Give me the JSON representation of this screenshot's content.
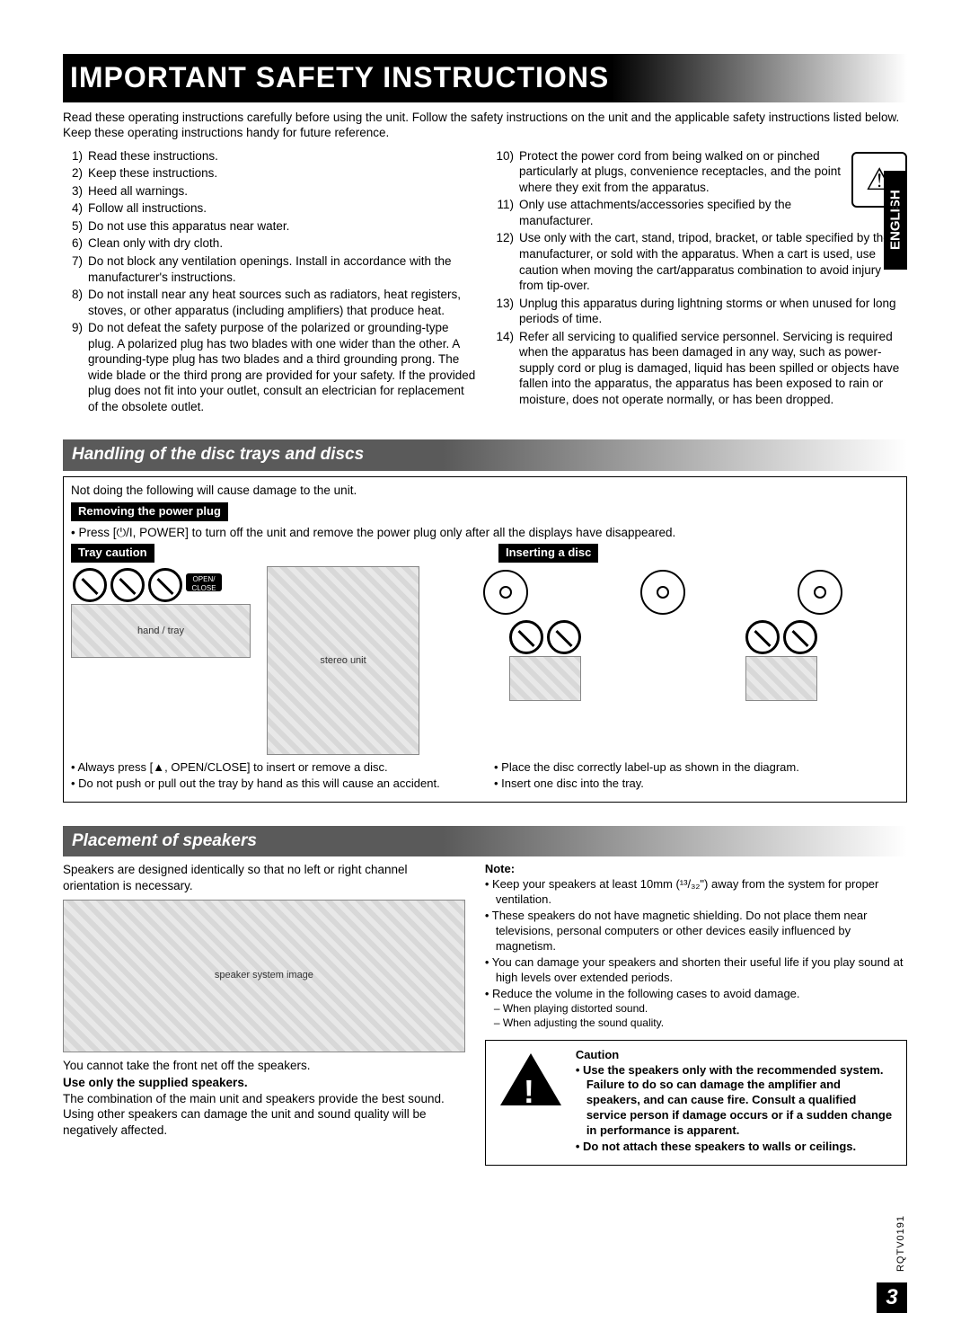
{
  "title": "IMPORTANT SAFETY INSTRUCTIONS",
  "intro": "Read these operating instructions carefully before using the unit. Follow the safety instructions on the unit and the applicable safety instructions listed below. Keep these operating instructions handy for future reference.",
  "left_list": [
    "Read these instructions.",
    "Keep these instructions.",
    "Heed all warnings.",
    "Follow all instructions.",
    "Do not use this apparatus near water.",
    "Clean only with dry cloth.",
    "Do not block any ventilation openings. Install in accordance with the manufacturer's instructions.",
    "Do not install near any heat sources such as radiators, heat registers, stoves, or other apparatus (including amplifiers) that produce heat.",
    "Do not defeat the safety purpose of the polarized or grounding-type plug. A polarized plug has two blades with one wider than the other. A grounding-type plug has two blades and a third grounding prong. The wide blade or the third prong are provided for your safety. If the provided plug does not fit into your outlet, consult an electrician for replacement of the obsolete outlet."
  ],
  "right_list": [
    "Protect the power cord from being walked on or pinched particularly at plugs, convenience receptacles, and the point where they exit from the apparatus.",
    "Only use attachments/accessories specified by the manufacturer.",
    "Use only with the cart, stand, tripod, bracket, or table specified by the manufacturer, or sold with the apparatus. When a cart is used, use caution when moving the cart/apparatus combination to avoid injury from tip-over.",
    "Unplug this apparatus during lightning storms or when unused for long periods of time.",
    "Refer all servicing to qualified service personnel. Servicing is required when the apparatus has been damaged in any way, such as power-supply cord or plug is damaged, liquid has been spilled or objects have fallen into the apparatus, the apparatus has been exposed to rain or moisture, does not operate normally, or has been dropped."
  ],
  "side_tab": "ENGLISH",
  "section2": {
    "title": "Handling of the disc trays and discs",
    "lead": "Not doing the following will cause damage to the unit.",
    "removing_label": "Removing the power plug",
    "removing_text": "• Press [⏻/I, POWER] to turn off the unit and remove the power plug only after all the displays have disappeared.",
    "tray_label": "Tray caution",
    "insert_label": "Inserting a disc",
    "left_bullets": [
      "Always press [▲, OPEN/CLOSE] to insert or remove a disc.",
      "Do not push or pull out the tray by hand as this will cause an accident."
    ],
    "right_bullets": [
      "Place the disc correctly label-up as shown in the diagram.",
      "Insert one disc into the tray."
    ]
  },
  "section3": {
    "title": "Placement of speakers",
    "para1": "Speakers are designed identically so that no left or right channel orientation is necessary.",
    "net_text": "You cannot take the front net off the speakers.",
    "use_only_label": "Use only the supplied speakers.",
    "use_only_text": "The combination of the main unit and speakers provide the best sound. Using other speakers can damage the unit and sound quality will be negatively affected.",
    "note_label": "Note:",
    "notes": [
      "Keep your speakers at least 10mm (¹³/₃₂\") away from the system for proper ventilation.",
      "These speakers do not have magnetic shielding. Do not place them near televisions, personal computers or other devices easily influenced by magnetism.",
      "You can damage your speakers and shorten their useful life if you play sound at high levels over extended periods.",
      "Reduce the volume in the following cases to avoid damage."
    ],
    "sub_notes": [
      "When playing distorted sound.",
      "When adjusting the sound quality."
    ],
    "caution_label": "Caution",
    "caution_points": [
      "Use the speakers only with the recommended system. Failure to do so can damage the amplifier and speakers, and can cause fire. Consult a qualified service person if damage occurs or if a sudden change in performance is apparent.",
      "Do not attach these speakers to walls or ceilings."
    ]
  },
  "doc_code": "RQTV0191",
  "page_num": "3"
}
